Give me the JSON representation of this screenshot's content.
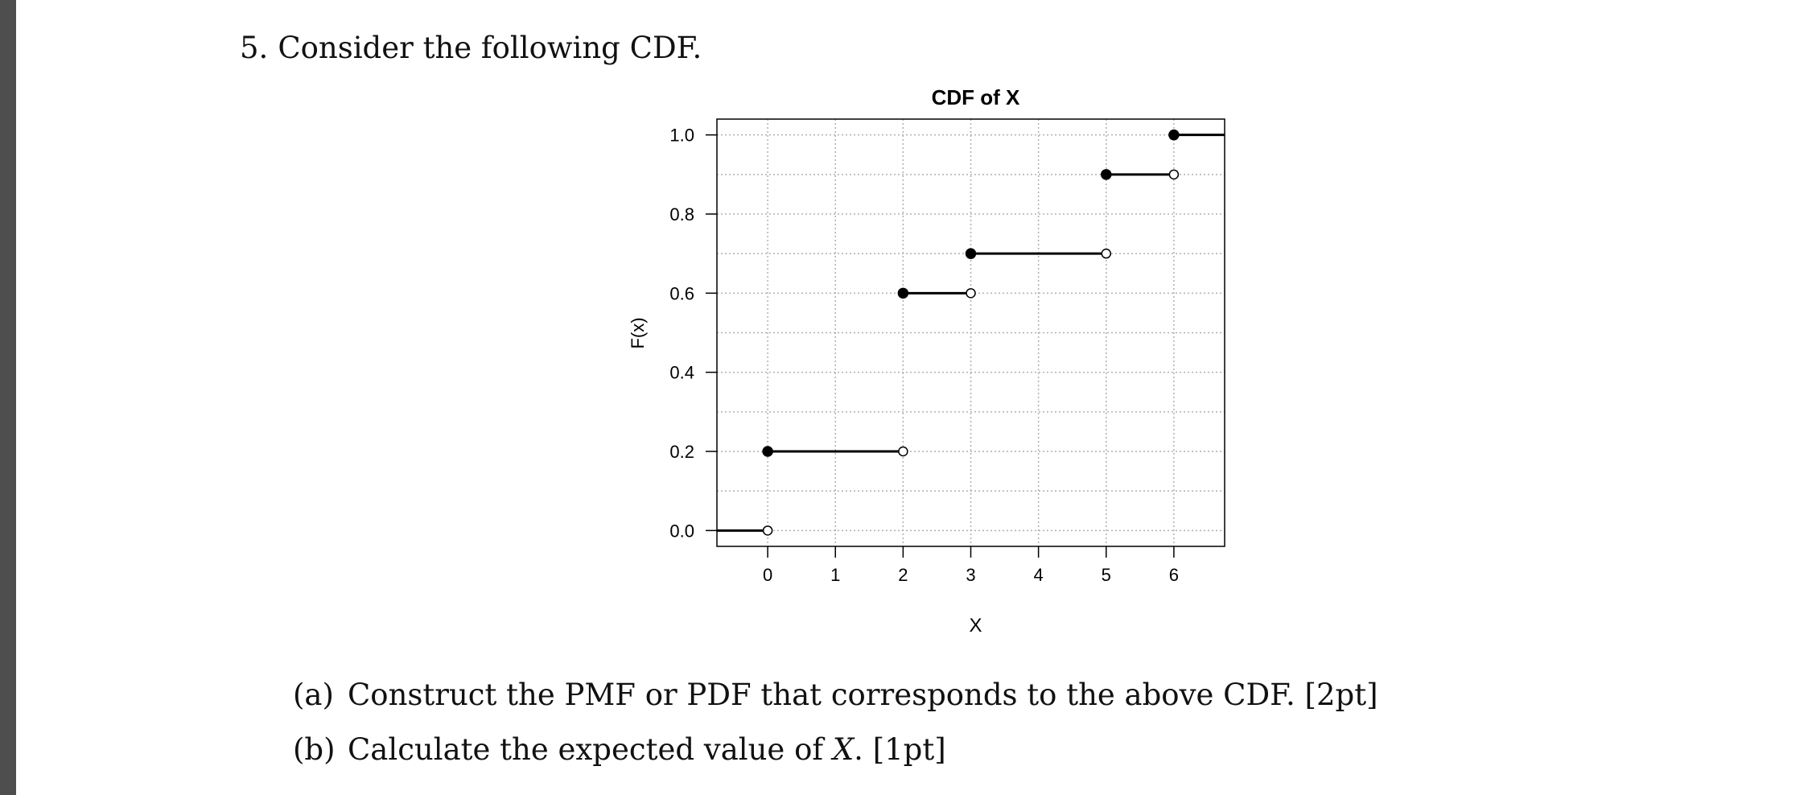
{
  "colors": {
    "sidebar": "#4e4e4e",
    "text": "#111111",
    "plot_line": "#000000",
    "grid": "#b0b0b0"
  },
  "question": {
    "number": "5.",
    "text": "Consider the following CDF."
  },
  "parts": [
    {
      "label": "(a)",
      "text": "Construct the PMF or PDF that corresponds to the above CDF. [2pt]"
    },
    {
      "label": "(b)",
      "text_before": "Calculate the expected value of ",
      "variable": "X",
      "text_after": ". [1pt]"
    }
  ],
  "chart_data": {
    "type": "line",
    "subtype": "step-cdf",
    "title": "CDF of X",
    "xlabel": "X",
    "ylabel": "F(x)",
    "xlim": [
      -0.75,
      6.75
    ],
    "ylim": [
      -0.04,
      1.04
    ],
    "x_ticks": [
      0,
      1,
      2,
      3,
      4,
      5,
      6
    ],
    "y_ticks": [
      0.0,
      0.2,
      0.4,
      0.6,
      0.8,
      1.0
    ],
    "y_tick_labels": [
      "0.0",
      "0.2",
      "0.4",
      "0.6",
      "0.8",
      "1.0"
    ],
    "grid": true,
    "grid_x": [
      0,
      1,
      2,
      3,
      4,
      5,
      6
    ],
    "grid_y": [
      0.0,
      0.1,
      0.2,
      0.3,
      0.4,
      0.5,
      0.6,
      0.7,
      0.8,
      0.9,
      1.0
    ],
    "segments": [
      {
        "x_start": -0.75,
        "x_end": 0,
        "y": 0.0,
        "closed_start": false,
        "open_end": true
      },
      {
        "x_start": 0,
        "x_end": 2,
        "y": 0.2,
        "closed_start": true,
        "open_end": true
      },
      {
        "x_start": 2,
        "x_end": 3,
        "y": 0.6,
        "closed_start": true,
        "open_end": true
      },
      {
        "x_start": 3,
        "x_end": 5,
        "y": 0.7,
        "closed_start": true,
        "open_end": true
      },
      {
        "x_start": 5,
        "x_end": 6,
        "y": 0.9,
        "closed_start": true,
        "open_end": true
      },
      {
        "x_start": 6,
        "x_end": 6.75,
        "y": 1.0,
        "closed_start": true,
        "open_end": false
      }
    ]
  }
}
